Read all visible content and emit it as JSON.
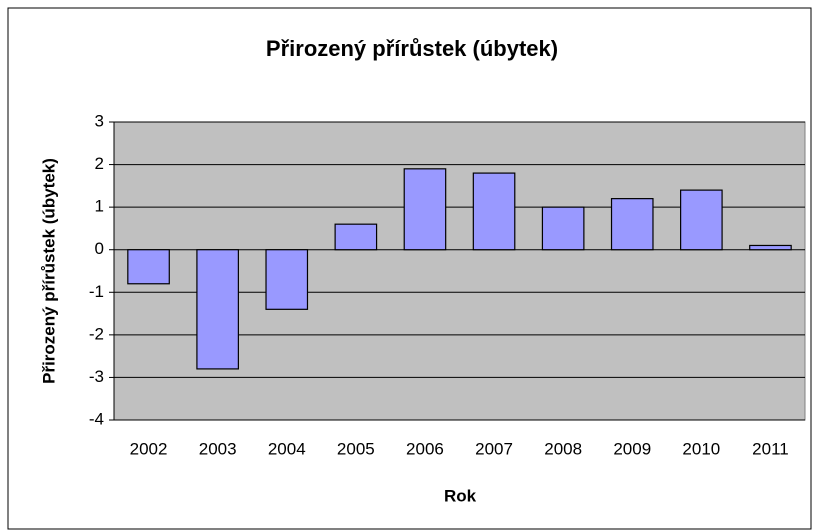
{
  "chart_data": {
    "type": "bar",
    "title": "Přirozený přírůstek (úbytek)",
    "x_label": "Rok",
    "y_label": "Přirozený přírůstek (úbytek)",
    "categories": [
      "2002",
      "2003",
      "2004",
      "2005",
      "2006",
      "2007",
      "2008",
      "2009",
      "2010",
      "2011"
    ],
    "values": [
      -0.8,
      -2.8,
      -1.4,
      0.6,
      1.9,
      1.8,
      1.0,
      1.2,
      1.4,
      0.1
    ],
    "color": "#9999ff",
    "ylim": [
      -4,
      3
    ],
    "yticks": [
      -4,
      -3,
      -2,
      -1,
      0,
      1,
      2,
      3
    ],
    "grid": true
  }
}
